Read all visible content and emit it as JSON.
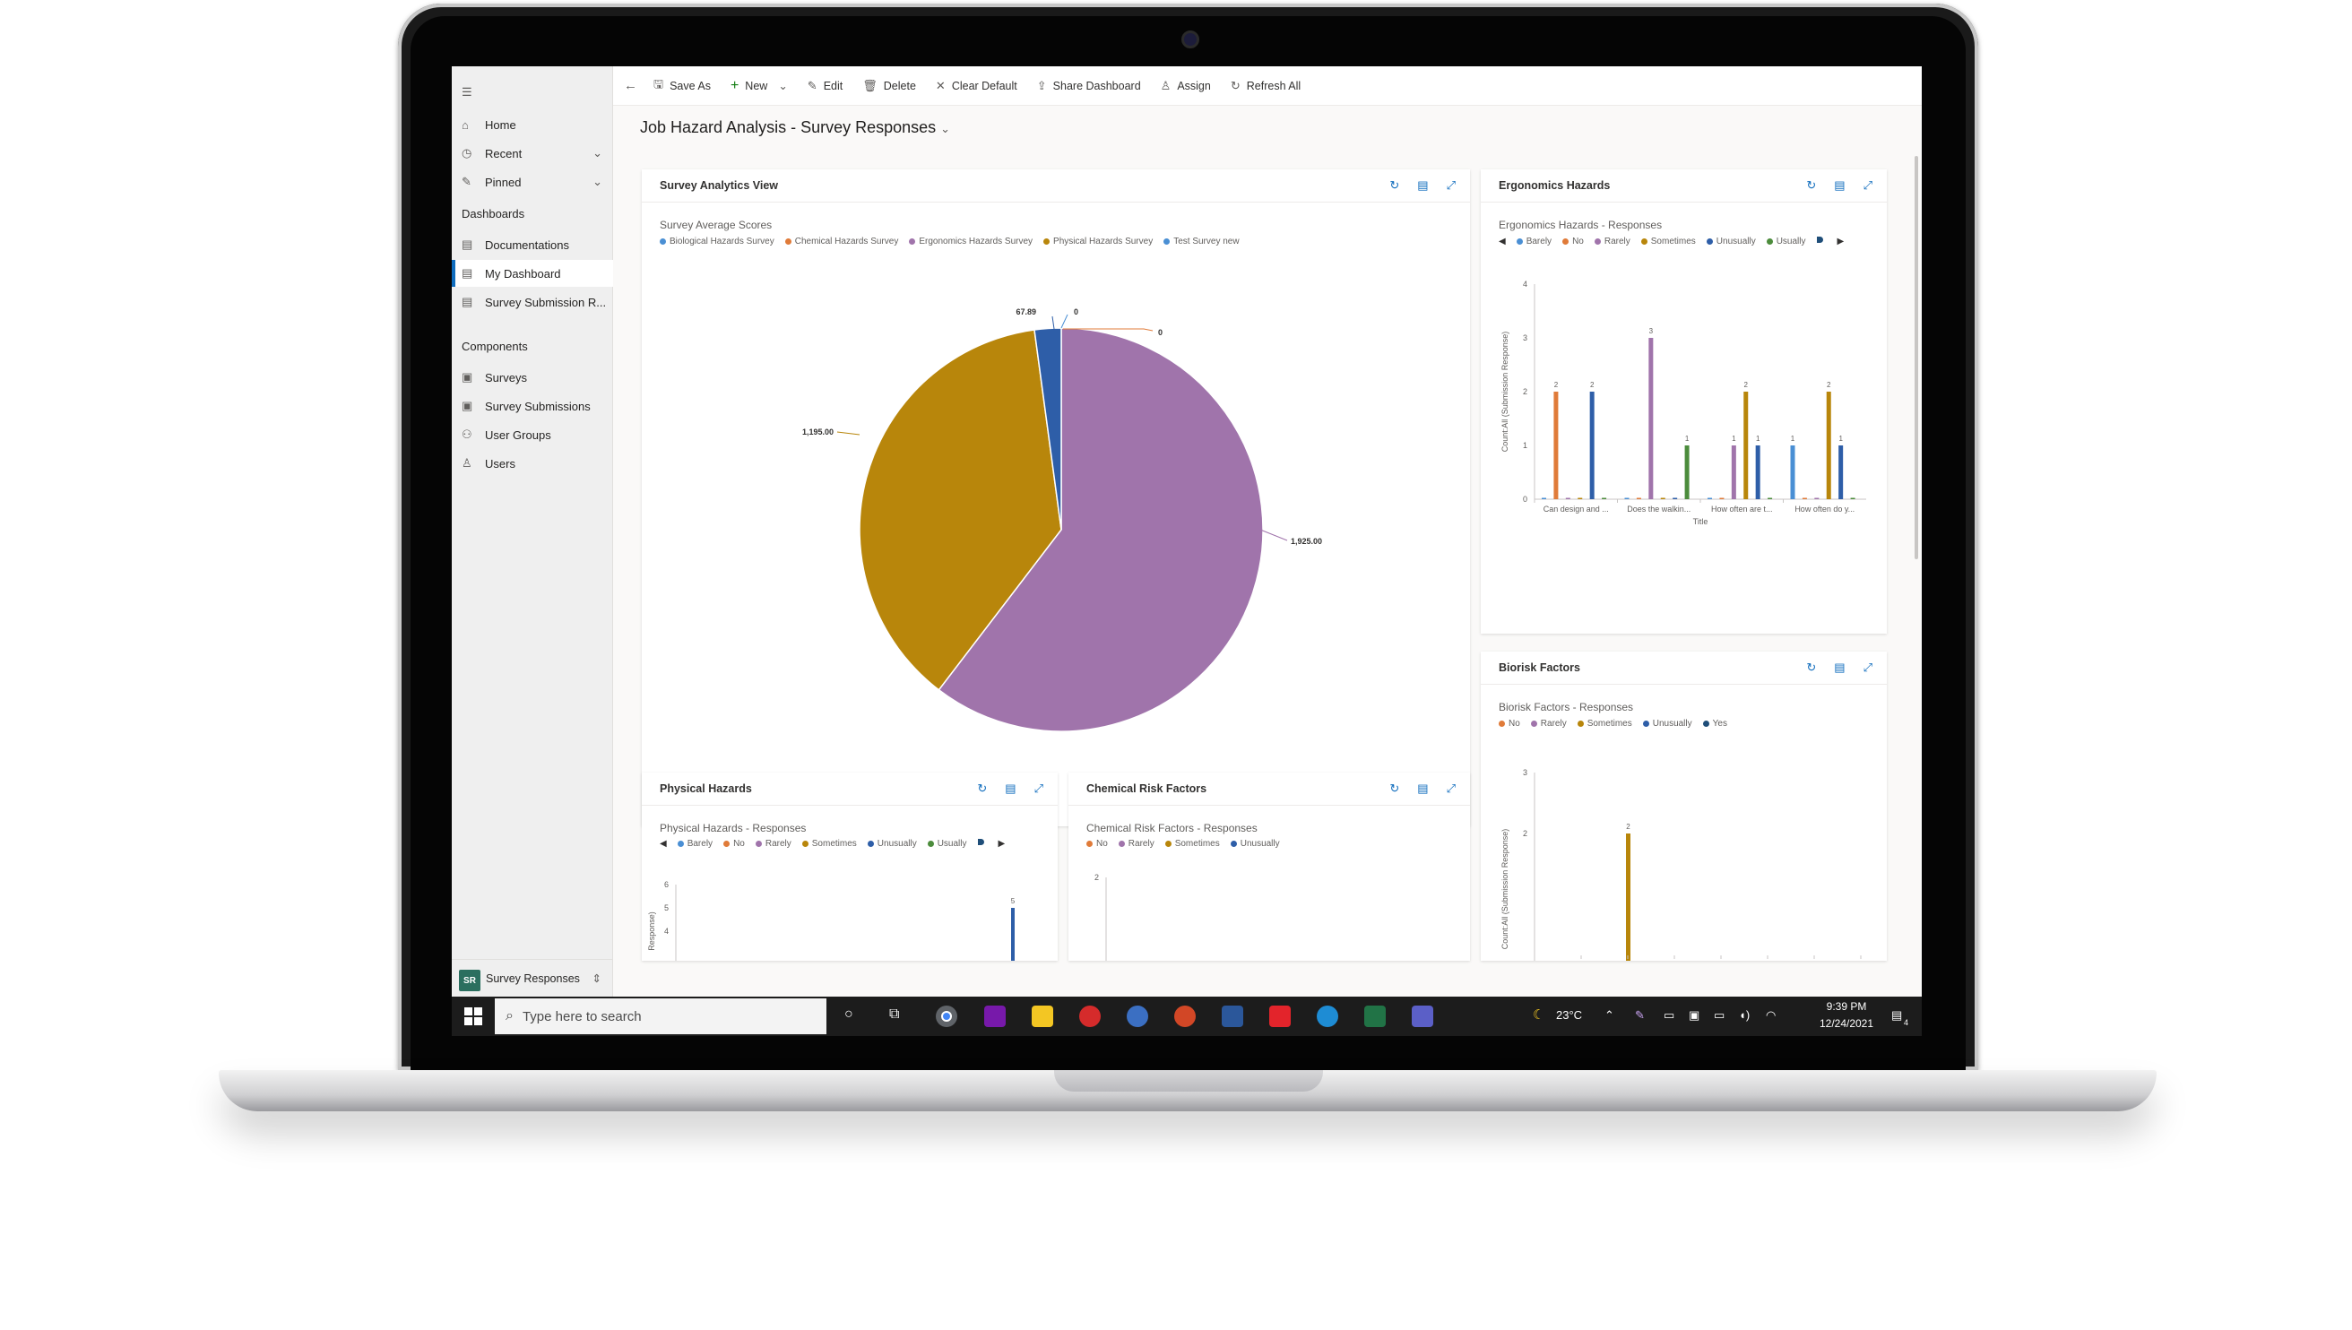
{
  "sidebar": {
    "items": [
      {
        "label": "Home",
        "icon": "home-icon"
      },
      {
        "label": "Recent",
        "icon": "clock-icon"
      },
      {
        "label": "Pinned",
        "icon": "pin-icon"
      }
    ],
    "dashboards_header": "Dashboards",
    "dashboards": [
      {
        "label": "Documentations"
      },
      {
        "label": "My Dashboard"
      },
      {
        "label": "Survey Submission R..."
      }
    ],
    "components_header": "Components",
    "components": [
      {
        "label": "Surveys"
      },
      {
        "label": "Survey Submissions"
      },
      {
        "label": "User Groups"
      },
      {
        "label": "Users"
      }
    ],
    "app_badge": "SR",
    "app_name": "Survey Responses"
  },
  "toolbar": {
    "save_as": "Save As",
    "new": "New",
    "edit": "Edit",
    "delete": "Delete",
    "clear_default": "Clear Default",
    "share_dashboard": "Share Dashboard",
    "assign": "Assign",
    "refresh_all": "Refresh All"
  },
  "page_title": "Job Hazard Analysis - Survey Responses",
  "cards": {
    "survey_analytics": {
      "title": "Survey Analytics View"
    },
    "ergonomics": {
      "title": "Ergonomics Hazards"
    },
    "biorisk": {
      "title": "Biorisk Factors"
    },
    "physical": {
      "title": "Physical Hazards"
    },
    "chemical": {
      "title": "Chemical Risk Factors"
    }
  },
  "colors": {
    "blue": "#4a8fd4",
    "orange": "#e07b39",
    "purple": "#a074ab",
    "gold": "#b8860b",
    "darkblue": "#2e5ea8",
    "green": "#4c8c3c",
    "navy": "#1f4e79"
  },
  "chart_data": [
    {
      "type": "pie",
      "title": "Survey Average Scores",
      "categories": [
        "Biological Hazards Survey",
        "Chemical Hazards Survey",
        "Ergonomics Hazards Survey",
        "Physical Hazards Survey",
        "Test Survey new"
      ],
      "values": [
        0,
        0,
        1925.0,
        1195.0,
        67.89
      ],
      "data_labels": [
        "0",
        "0",
        "1,925.00",
        "1,195.00",
        "67.89"
      ]
    },
    {
      "type": "bar",
      "title": "Ergonomics Hazards - Responses",
      "xlabel": "Title",
      "ylabel": "Count:All (Submission Response)",
      "legend": [
        "Barely",
        "No",
        "Rarely",
        "Sometimes",
        "Unusually",
        "Usually"
      ],
      "categories": [
        "Can design and ...",
        "Does the walkin...",
        "How often are t...",
        "How often do y..."
      ],
      "series": [
        {
          "name": "Barely",
          "values": [
            0,
            0,
            0,
            1
          ]
        },
        {
          "name": "No",
          "values": [
            2,
            0,
            0,
            0
          ]
        },
        {
          "name": "Rarely",
          "values": [
            0,
            3,
            1,
            0
          ]
        },
        {
          "name": "Sometimes",
          "values": [
            0,
            0,
            2,
            2
          ]
        },
        {
          "name": "Unusually",
          "values": [
            2,
            0,
            1,
            1
          ]
        },
        {
          "name": "Usually",
          "values": [
            0,
            1,
            0,
            0
          ]
        }
      ],
      "ylim": [
        0,
        4
      ],
      "yticks": [
        "0",
        "1",
        "2",
        "3",
        "4"
      ]
    },
    {
      "type": "bar",
      "title": "Biorisk Factors - Responses",
      "ylabel": "Count:All (Submission Response)",
      "legend": [
        "No",
        "Rarely",
        "Sometimes",
        "Unusually",
        "Yes"
      ],
      "series": [
        {
          "name": "Sometimes",
          "values": [
            2
          ]
        }
      ],
      "ylim": [
        0,
        3
      ],
      "yticks": [
        "2",
        "3"
      ]
    },
    {
      "type": "bar",
      "title": "Physical Hazards - Responses",
      "ylabel": "Response)",
      "legend": [
        "Barely",
        "No",
        "Rarely",
        "Sometimes",
        "Unusually",
        "Usually"
      ],
      "series": [
        {
          "name": "Unusually",
          "values": [
            5
          ]
        }
      ],
      "ylim": [
        0,
        6
      ],
      "yticks": [
        "4",
        "5",
        "6"
      ]
    },
    {
      "type": "bar",
      "title": "Chemical Risk Factors - Responses",
      "legend": [
        "No",
        "Rarely",
        "Sometimes",
        "Unusually"
      ],
      "yticks": [
        "2"
      ]
    }
  ],
  "taskbar": {
    "search_placeholder": "Type here to search",
    "temperature": "23°C",
    "time": "9:39 PM",
    "date": "12/24/2021",
    "notifications": "4"
  }
}
